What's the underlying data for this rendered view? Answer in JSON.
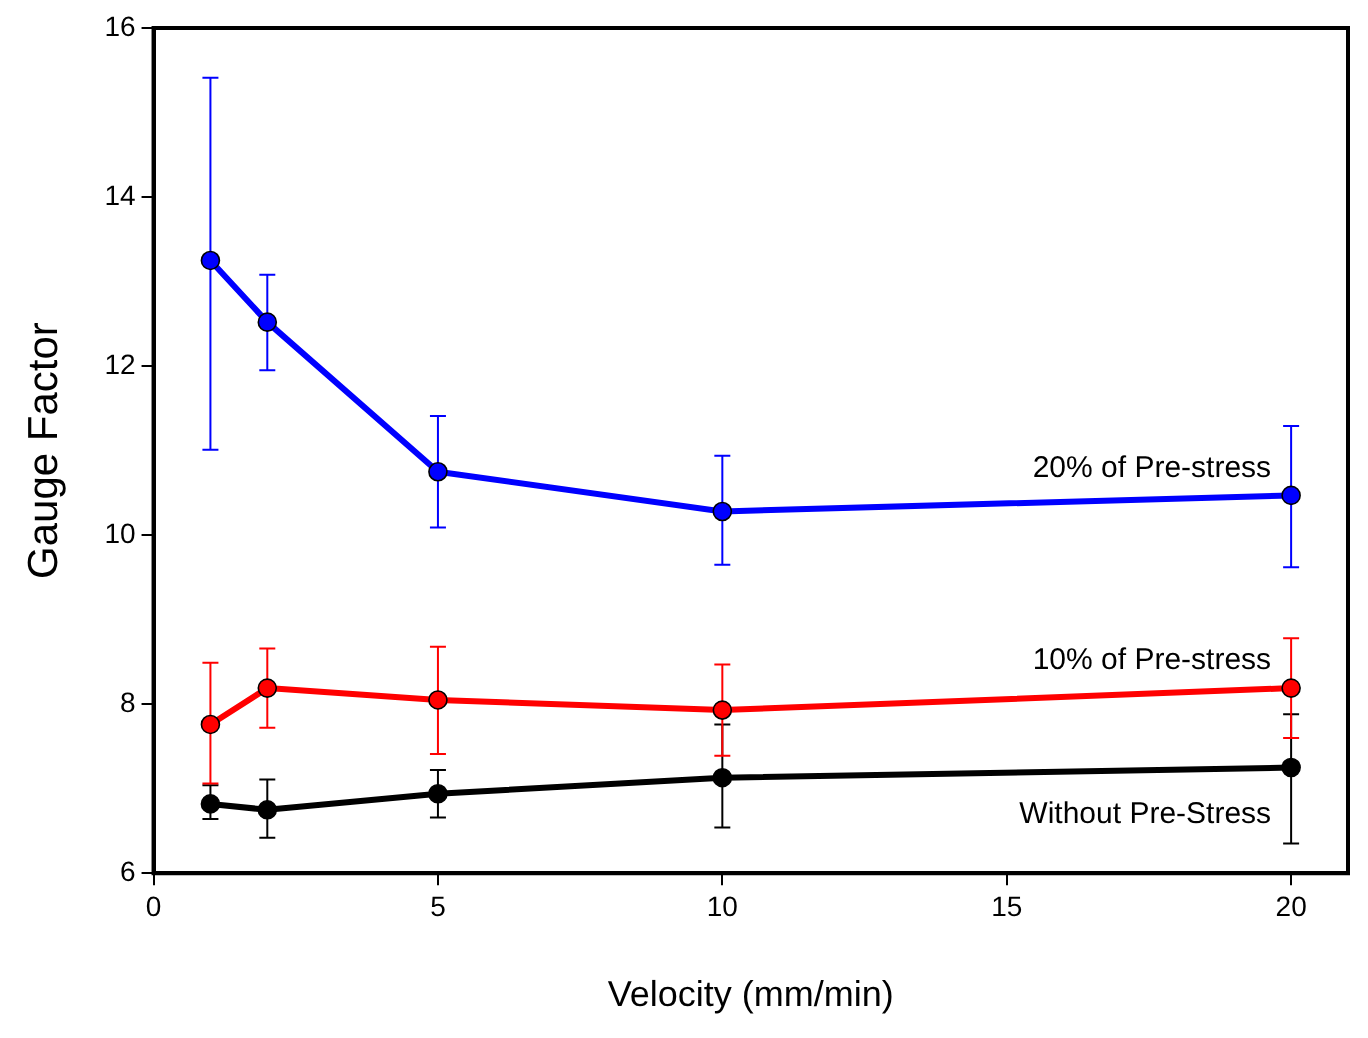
{
  "chart_data": {
    "type": "line",
    "xlabel": "Velocity (mm/min)",
    "ylabel": "Gauge Factor",
    "xlim": [
      0,
      21
    ],
    "xticks": [
      0,
      5,
      10,
      15,
      20
    ],
    "ylim": [
      6,
      16
    ],
    "yticks": [
      6,
      8,
      10,
      12,
      14,
      16
    ],
    "grid": false,
    "legend": false,
    "marker": "circle",
    "line_style": "solid",
    "x": [
      1,
      2,
      5,
      10,
      20
    ],
    "series": [
      {
        "name": "Without Pre-Stress",
        "color": "#000000",
        "values": [
          6.82,
          6.75,
          6.94,
          7.13,
          7.25
        ],
        "errors": [
          [
            6.64,
            7.04
          ],
          [
            6.42,
            7.11
          ],
          [
            6.66,
            7.22
          ],
          [
            6.54,
            7.76
          ],
          [
            6.35,
            7.88
          ]
        ]
      },
      {
        "name": "10% of Pre-stress",
        "color": "#ff0000",
        "values": [
          7.76,
          8.19,
          8.05,
          7.93,
          8.19
        ],
        "errors": [
          [
            7.06,
            8.49
          ],
          [
            7.72,
            8.66
          ],
          [
            7.41,
            8.68
          ],
          [
            7.39,
            8.47
          ],
          [
            7.6,
            8.78
          ]
        ]
      },
      {
        "name": "20% of Pre-stress",
        "color": "#0000ff",
        "values": [
          13.25,
          12.52,
          10.75,
          10.28,
          10.47
        ],
        "errors": [
          [
            11.01,
            15.41
          ],
          [
            11.95,
            13.08
          ],
          [
            10.09,
            11.41
          ],
          [
            9.65,
            10.94
          ],
          [
            9.62,
            11.29
          ]
        ]
      }
    ]
  }
}
